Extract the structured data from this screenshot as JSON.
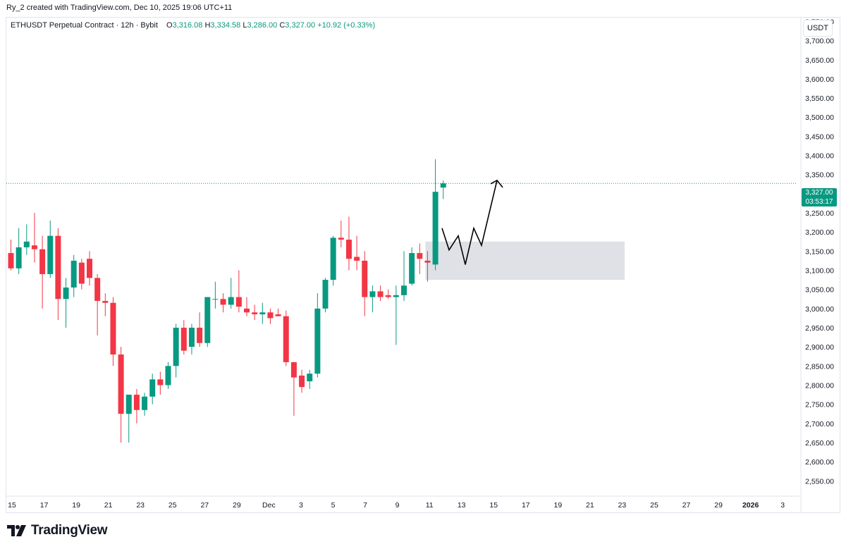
{
  "attribution": "Ry_2 created with TradingView.com, Dec 10, 2025 19:06 UTC+11",
  "legend": {
    "symbol": "ETHUSDT Perpetual Contract · 12h · Bybit",
    "open_label": "O",
    "open": "3,316.08",
    "high_label": "H",
    "high": "3,334.58",
    "low_label": "L",
    "low": "3,286.00",
    "close_label": "C",
    "close": "3,327.00",
    "change": "+10.92 (+0.33%)"
  },
  "price_axis": {
    "unit": "USDT"
  },
  "last_price": {
    "price": "3,327.00",
    "countdown": "03:53:17"
  },
  "logo": {
    "text": "TradingView"
  },
  "colors": {
    "up": "#089981",
    "down": "#f23645",
    "zone": "#d1d4dc",
    "grid": "#e0e3eb"
  },
  "chart_data": {
    "type": "candlestick",
    "interval": "12h",
    "y_ticks": [
      2550,
      2600,
      2650,
      2700,
      2750,
      2800,
      2850,
      2900,
      2950,
      3000,
      3050,
      3100,
      3150,
      3200,
      3250,
      3300,
      3350,
      3400,
      3450,
      3500,
      3550,
      3600,
      3650,
      3700,
      3750
    ],
    "y_tick_labels": [
      "2,550.00",
      "2,600.00",
      "2,650.00",
      "2,700.00",
      "2,750.00",
      "2,800.00",
      "2,850.00",
      "2,900.00",
      "2,950.00",
      "3,000.00",
      "3,050.00",
      "3,100.00",
      "3,150.00",
      "3,200.00",
      "3,250.00",
      "3,300.00",
      "3,350.00",
      "3,400.00",
      "3,450.00",
      "3,500.00",
      "3,550.00",
      "3,600.00",
      "3,650.00",
      "3,700.00",
      "3,750.00"
    ],
    "ylim": [
      2510,
      3760
    ],
    "x_labels": [
      "15",
      "17",
      "19",
      "21",
      "23",
      "25",
      "27",
      "29",
      "Dec",
      "3",
      "5",
      "7",
      "9",
      "11",
      "13",
      "15",
      "17",
      "19",
      "21",
      "23",
      "25",
      "27",
      "29",
      "2026",
      "3"
    ],
    "candles": [
      [
        3145,
        3180,
        3100,
        3105
      ],
      [
        3105,
        3210,
        3090,
        3160
      ],
      [
        3160,
        3220,
        3140,
        3175
      ],
      [
        3165,
        3250,
        3120,
        3155
      ],
      [
        3155,
        3190,
        3000,
        3090
      ],
      [
        3090,
        3230,
        3080,
        3190
      ],
      [
        3190,
        3210,
        2970,
        3025
      ],
      [
        3025,
        3080,
        2950,
        3055
      ],
      [
        3055,
        3140,
        3030,
        3125
      ],
      [
        3120,
        3130,
        3050,
        3065
      ],
      [
        3130,
        3150,
        3060,
        3080
      ],
      [
        3080,
        3090,
        2930,
        3020
      ],
      [
        3020,
        3040,
        2980,
        3015
      ],
      [
        3015,
        3030,
        2850,
        2880
      ],
      [
        2880,
        2900,
        2650,
        2725
      ],
      [
        2725,
        2775,
        2650,
        2775
      ],
      [
        2775,
        2790,
        2700,
        2735
      ],
      [
        2735,
        2780,
        2720,
        2770
      ],
      [
        2770,
        2830,
        2750,
        2815
      ],
      [
        2815,
        2835,
        2775,
        2800
      ],
      [
        2800,
        2860,
        2790,
        2850
      ],
      [
        2850,
        2960,
        2820,
        2950
      ],
      [
        2950,
        2970,
        2880,
        2890
      ],
      [
        2900,
        2960,
        2880,
        2950
      ],
      [
        2950,
        2990,
        2900,
        2910
      ],
      [
        2910,
        3030,
        2900,
        3030
      ],
      [
        3025,
        3070,
        3000,
        3025
      ],
      [
        3025,
        3040,
        2990,
        3010
      ],
      [
        3010,
        3080,
        3000,
        3030
      ],
      [
        3030,
        3100,
        2990,
        3005
      ],
      [
        3000,
        3030,
        2980,
        2990
      ],
      [
        2990,
        3010,
        2970,
        2985
      ],
      [
        2985,
        3015,
        2960,
        2990
      ],
      [
        2990,
        3000,
        2960,
        2975
      ],
      [
        2985,
        3000,
        2980,
        2980
      ],
      [
        2980,
        2995,
        2850,
        2860
      ],
      [
        2860,
        2860,
        2720,
        2820
      ],
      [
        2825,
        2840,
        2780,
        2795
      ],
      [
        2810,
        2840,
        2790,
        2830
      ],
      [
        2830,
        3040,
        2820,
        3000
      ],
      [
        3000,
        3080,
        2990,
        3075
      ],
      [
        3075,
        3190,
        3060,
        3185
      ],
      [
        3185,
        3230,
        3160,
        3180
      ],
      [
        3180,
        3240,
        3100,
        3130
      ],
      [
        3135,
        3190,
        3100,
        3125
      ],
      [
        3125,
        3150,
        2980,
        3030
      ],
      [
        3030,
        3060,
        2990,
        3045
      ],
      [
        3045,
        3060,
        3020,
        3030
      ],
      [
        3035,
        3050,
        3025,
        3030
      ],
      [
        3030,
        3060,
        2905,
        3035
      ],
      [
        3035,
        3150,
        3020,
        3060
      ],
      [
        3065,
        3160,
        3060,
        3145
      ],
      [
        3145,
        3170,
        3090,
        3130
      ],
      [
        3125,
        3150,
        3070,
        3120
      ],
      [
        3115,
        3390,
        3100,
        3305
      ],
      [
        3316.08,
        3334.58,
        3286.0,
        3327.0
      ]
    ],
    "last_price": 3327.0,
    "zone": {
      "top": 3175,
      "bottom": 3075
    },
    "projection_path": [
      [
        3210,
        3153,
        3190,
        3115,
        3210,
        3165,
        3335
      ]
    ]
  }
}
